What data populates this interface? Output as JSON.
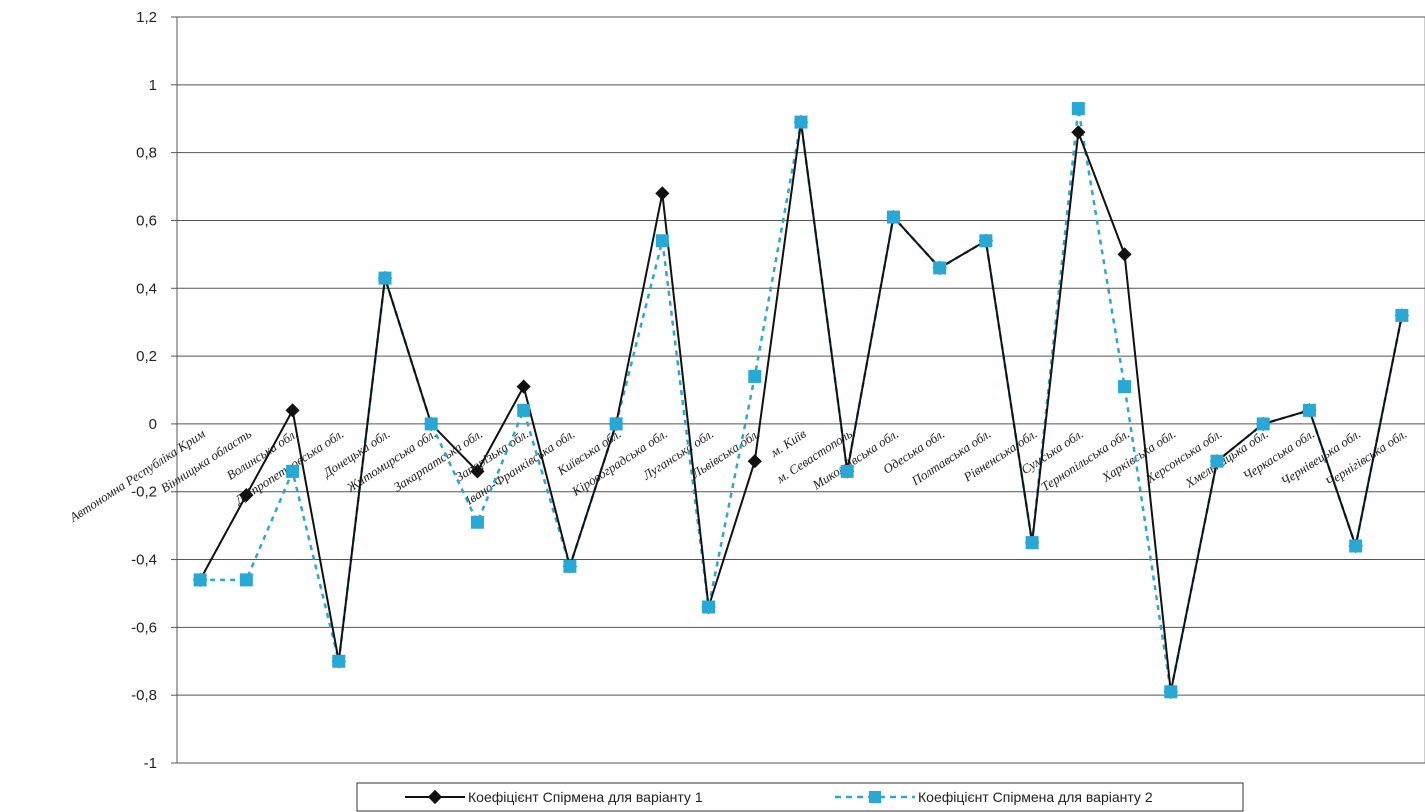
{
  "chart_data": {
    "type": "line",
    "ylim": [
      -1,
      1.2
    ],
    "ytick_step": 0.2,
    "grid": true,
    "legend_position": "bottom",
    "categories": [
      "Автономна Республіка Крим",
      "Вінницька область",
      "Волинська обл.",
      "Дніпропетровська обл.",
      "Донецька обл.",
      "Житомирська обл.",
      "Закарпатська обл.",
      "Запорізька обл.",
      "Івано-Франківська обл.",
      "Київська обл.",
      "Кіровоградська обл.",
      "Луганська обл.",
      "Львівська обл.",
      "м. Київ",
      "м. Севастополь",
      "Миколаївська обл.",
      "Одеська обл.",
      "Полтавська обл.",
      "Рівненська обл.",
      "Сумська обл.",
      "Тернопільська обл.",
      "Харківська обл.",
      "Херсонська обл.",
      "Хмельницька обл.",
      "Черкаська обл.",
      "Чернівецька обл.",
      "Чернігівська обл."
    ],
    "series": [
      {
        "name": "Коефіцієнт Спірмена для варіанту 1",
        "color": "#111111",
        "marker": "diamond",
        "line_style": "solid",
        "values": [
          -0.46,
          -0.21,
          0.04,
          -0.7,
          0.43,
          0.0,
          -0.14,
          0.11,
          -0.42,
          0.0,
          0.68,
          -0.54,
          -0.11,
          0.89,
          -0.14,
          0.61,
          0.46,
          0.54,
          -0.35,
          0.86,
          0.5,
          -0.79,
          -0.11,
          0.0,
          0.04,
          -0.36,
          0.32
        ]
      },
      {
        "name": "Коефіцієнт Спірмена для варіанту 2",
        "color": "#27a9d8",
        "marker": "square",
        "line_style": "dashed",
        "values": [
          -0.46,
          -0.46,
          -0.14,
          -0.7,
          0.43,
          0.0,
          -0.29,
          0.04,
          -0.42,
          0.0,
          0.54,
          -0.54,
          0.14,
          0.89,
          -0.14,
          0.61,
          0.46,
          0.54,
          -0.35,
          0.93,
          0.11,
          -0.79,
          -0.11,
          0.0,
          0.04,
          -0.36,
          0.32
        ]
      }
    ]
  }
}
